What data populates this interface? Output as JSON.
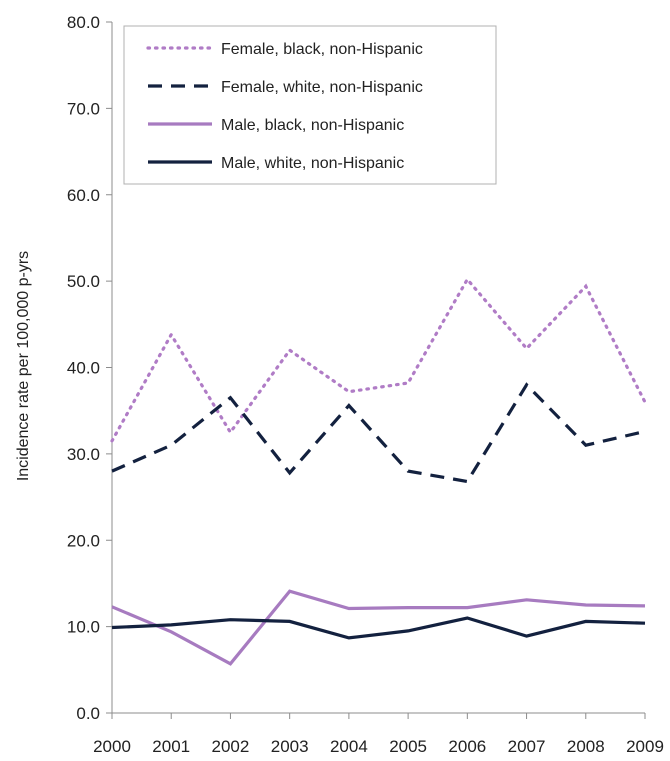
{
  "chart_data": {
    "type": "line",
    "title": "",
    "xlabel": "",
    "ylabel": "Incidence rate per 100,000 p-yrs",
    "x": [
      "2000",
      "2001",
      "2002",
      "2003",
      "2004",
      "2005",
      "2006",
      "2007",
      "2008",
      "2009"
    ],
    "ylim": [
      0,
      80
    ],
    "yticks": [
      "0.0",
      "10.0",
      "20.0",
      "30.0",
      "40.0",
      "50.0",
      "60.0",
      "70.0",
      "80.0"
    ],
    "grid": false,
    "legend_position": "top-left",
    "series": [
      {
        "name": "Female, black, non-Hispanic",
        "style": "dotted",
        "color": "#b07cc6",
        "values": [
          31.5,
          43.8,
          32.5,
          42.0,
          37.2,
          38.2,
          50.2,
          42.2,
          49.4,
          36.0
        ]
      },
      {
        "name": "Female, white, non-Hispanic",
        "style": "dashed",
        "color": "#13213f",
        "values": [
          28.0,
          31.0,
          36.5,
          27.8,
          35.6,
          28.0,
          26.8,
          38.0,
          31.0,
          32.6
        ]
      },
      {
        "name": "Male, black, non-Hispanic",
        "style": "solid",
        "color": "#a77bc0",
        "values": [
          12.3,
          9.4,
          5.7,
          14.1,
          12.1,
          12.2,
          12.2,
          13.1,
          12.5,
          12.4
        ]
      },
      {
        "name": "Male, white, non-Hispanic",
        "style": "solid",
        "color": "#13213f",
        "values": [
          9.9,
          10.2,
          10.8,
          10.6,
          8.7,
          9.5,
          11.0,
          8.9,
          10.6,
          10.4
        ]
      }
    ]
  }
}
